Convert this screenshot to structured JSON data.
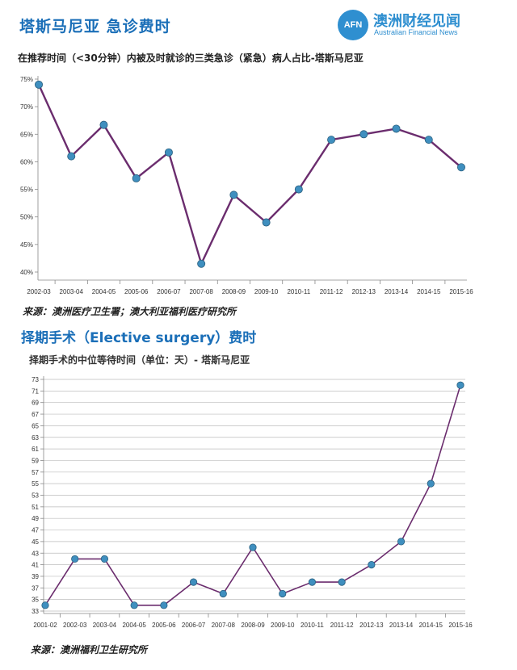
{
  "header": {
    "title": "塔斯马尼亚 急诊费时",
    "logo_mark": "AFN",
    "logo_cn": "澳洲财经见闻",
    "logo_en": "Australian Financial News"
  },
  "section2": {
    "title": "择期手术（Elective surgery）费时"
  },
  "chart_data": [
    {
      "type": "line",
      "title": "在推荐时间（<30分钟）内被及时就诊的三类急诊（紧急）病人占比-塔斯马尼亚",
      "source": "来源：澳洲医疗卫生署；澳大利亚福利医疗研究所",
      "categories": [
        "2002-03",
        "2003-04",
        "2004-05",
        "2005-06",
        "2006-07",
        "2007-08",
        "2008-09",
        "2009-10",
        "2010-11",
        "2011-12",
        "2012-13",
        "2013-14",
        "2014-15",
        "2015-16"
      ],
      "series": [
        {
          "values": [
            74,
            61,
            66.7,
            57,
            61.7,
            41.5,
            54,
            49,
            55,
            64,
            65,
            66,
            64,
            59
          ]
        }
      ],
      "yticks": [
        "40%",
        "45%",
        "50%",
        "55%",
        "60%",
        "65%",
        "70%",
        "75%"
      ],
      "ylim": [
        40,
        75
      ],
      "grid": false,
      "line_color": "#6b2d6e",
      "marker_color": "#3f8fbf"
    },
    {
      "type": "line",
      "title": "择期手术的中位等待时间（单位：天）- 塔斯马尼亚",
      "source": "来源：澳洲福利卫生研究所",
      "categories": [
        "2001-02",
        "2002-03",
        "2003-04",
        "2004-05",
        "2005-06",
        "2006-07",
        "2007-08",
        "2008-09",
        "2009-10",
        "2010-11",
        "2011-12",
        "2012-13",
        "2013-14",
        "2014-15",
        "2015-16"
      ],
      "series": [
        {
          "values": [
            34,
            42,
            42,
            34,
            34,
            38,
            36,
            44,
            36,
            38,
            38,
            41,
            45,
            55,
            72
          ]
        }
      ],
      "yticks": [
        "33",
        "35",
        "37",
        "39",
        "41",
        "43",
        "45",
        "47",
        "49",
        "51",
        "53",
        "55",
        "57",
        "59",
        "61",
        "63",
        "65",
        "67",
        "69",
        "71",
        "73"
      ],
      "ylim": [
        33,
        73
      ],
      "grid": true,
      "line_color": "#6b2d6e",
      "marker_color": "#3f8fbf"
    }
  ]
}
